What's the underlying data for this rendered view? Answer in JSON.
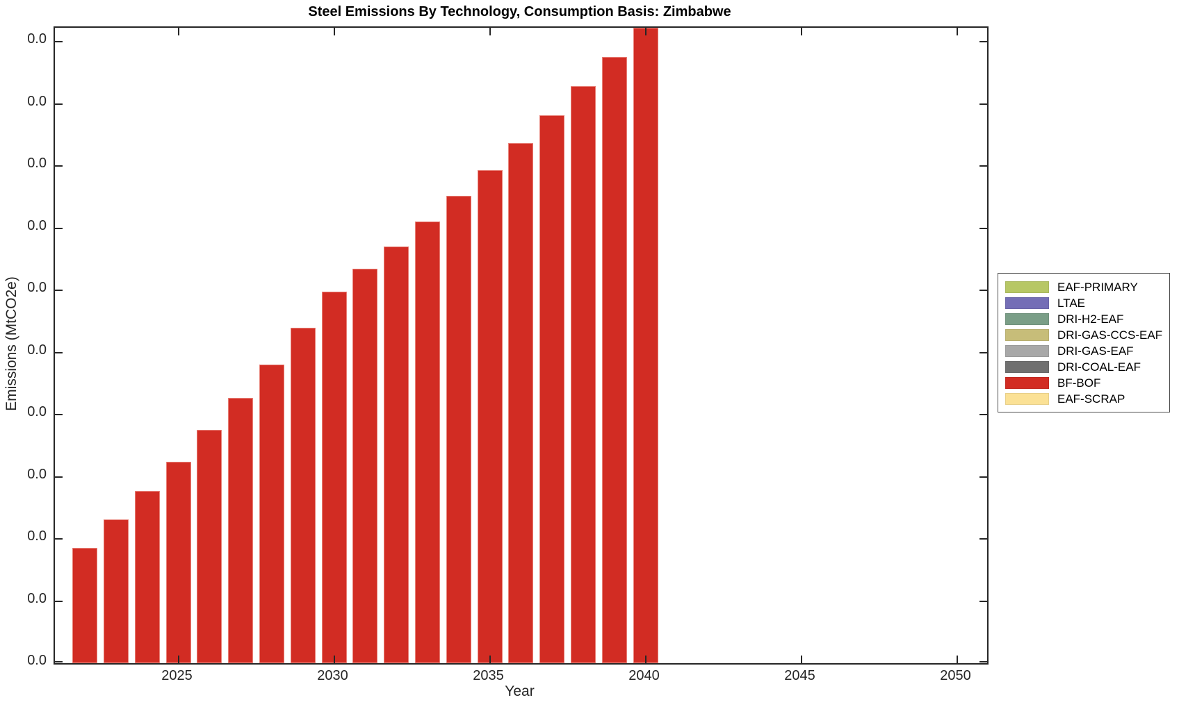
{
  "title": "Steel Emissions By Technology, Consumption Basis: Zimbabwe",
  "axis_color": "#262626",
  "chart_data": {
    "type": "bar",
    "title": "Steel Emissions By Technology, Consumption Basis: Zimbabwe",
    "xlabel": "Year",
    "ylabel": "Emissions (MtCO2e)",
    "grid": false,
    "legend_position": "right-outside",
    "x_tick_labels": [
      "2025",
      "2030",
      "2035",
      "2040",
      "2045",
      "2050"
    ],
    "x_tick_years": [
      2025,
      2030,
      2035,
      2040,
      2045,
      2050
    ],
    "y_tick_labels": [
      "0.0",
      "0.0",
      "0.0",
      "0.0",
      "0.0",
      "0.0",
      "0.0",
      "0.0",
      "0.0",
      "0.0",
      "0.0"
    ],
    "xlim_years": [
      2021.3,
      2051.2
    ],
    "visible_series": "BF-BOF",
    "bar_color": "#d22c23",
    "values_unit": "fraction_of_visible_y_axis_span (all y tick labels display 0.0)",
    "years": [
      2022,
      2023,
      2024,
      2025,
      2026,
      2027,
      2028,
      2029,
      2030,
      2031,
      2032,
      2033,
      2034,
      2035,
      2036,
      2037,
      2038,
      2039,
      2040
    ],
    "values": [
      0.186,
      0.231,
      0.277,
      0.324,
      0.375,
      0.427,
      0.48,
      0.54,
      0.598,
      0.635,
      0.67,
      0.711,
      0.752,
      0.793,
      0.837,
      0.882,
      0.928,
      0.975,
      1.022
    ],
    "clipped_years": [
      2040
    ]
  },
  "legend": {
    "items": [
      {
        "label": "EAF-PRIMARY",
        "color": "#b7c765"
      },
      {
        "label": "LTAE",
        "color": "#746eb6"
      },
      {
        "label": "DRI-H2-EAF",
        "color": "#7a9e87"
      },
      {
        "label": "DRI-GAS-CCS-EAF",
        "color": "#c7bd79"
      },
      {
        "label": "DRI-GAS-EAF",
        "color": "#a8a8a8"
      },
      {
        "label": "DRI-COAL-EAF",
        "color": "#707070"
      },
      {
        "label": "BF-BOF",
        "color": "#d22c23"
      },
      {
        "label": "EAF-SCRAP",
        "color": "#fbe195"
      }
    ]
  }
}
